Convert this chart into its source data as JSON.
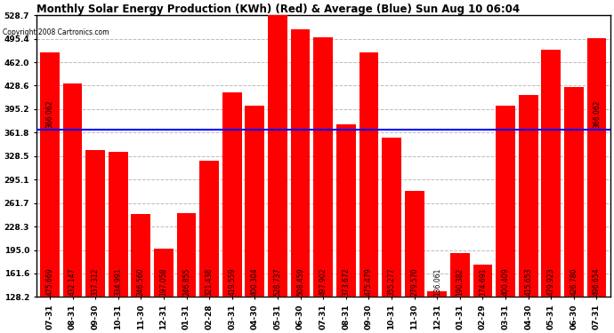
{
  "title": "Monthly Solar Energy Production (KWh) (Red) & Average (Blue) Sun Aug 10 06:04",
  "copyright": "Copyright 2008 Cartronics.com",
  "categories": [
    "07-31",
    "08-31",
    "09-30",
    "10-31",
    "11-30",
    "12-31",
    "01-31",
    "02-28",
    "03-31",
    "04-30",
    "05-31",
    "06-30",
    "07-31",
    "08-31",
    "09-30",
    "10-31",
    "11-30",
    "12-31",
    "01-31",
    "02-29",
    "03-31",
    "04-30",
    "05-31",
    "06-30",
    "07-31"
  ],
  "values": [
    475.669,
    432.147,
    337.312,
    334.991,
    246.56,
    197.058,
    246.855,
    321.438,
    419.559,
    400.304,
    528.737,
    508.459,
    497.902,
    373.672,
    475.479,
    355.277,
    279.57,
    136.061,
    190.382,
    174.691,
    400.409,
    415.653,
    479.923,
    426.78,
    496.654
  ],
  "average": 366.062,
  "bar_color": "#FF0000",
  "avg_line_color": "#0000FF",
  "bg_color": "#FFFFFF",
  "plot_bg_color": "#FFFFFF",
  "grid_color": "#BBBBBB",
  "title_fontsize": 8.5,
  "bar_label_fontsize": 5.5,
  "tick_fontsize": 6.5,
  "ylabel_values": [
    128.2,
    161.6,
    195.0,
    228.3,
    261.7,
    295.1,
    328.5,
    361.8,
    395.2,
    428.6,
    462.0,
    495.4,
    528.7
  ],
  "ymin": 128.2,
  "ymax": 528.7
}
